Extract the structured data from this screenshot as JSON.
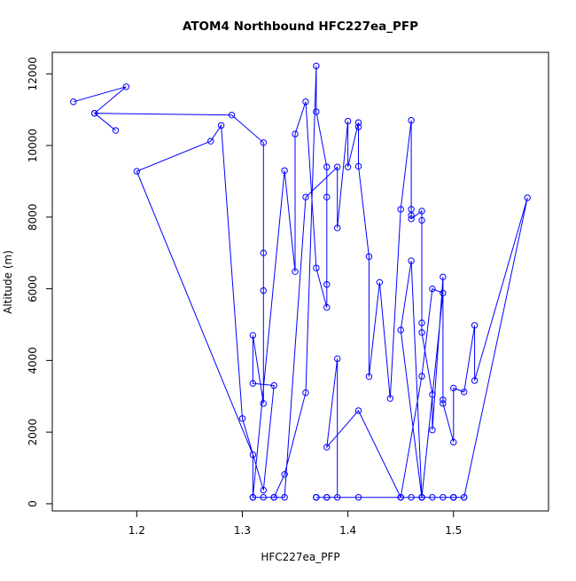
{
  "chart_data": {
    "type": "scatter",
    "title": "ATOM4 Northbound HFC227ea_PFP",
    "xlabel": "HFC227ea_PFP",
    "ylabel": "Altitude (m)",
    "xlim": [
      1.12,
      1.59
    ],
    "ylim": [
      -200,
      12600
    ],
    "xticks": [
      1.2,
      1.3,
      1.4,
      1.5
    ],
    "xtick_labels": [
      "1.2",
      "1.3",
      "1.4",
      "1.5"
    ],
    "yticks": [
      0,
      2000,
      4000,
      6000,
      8000,
      10000,
      12000
    ],
    "ytick_labels": [
      "0",
      "2000",
      "4000",
      "6000",
      "8000",
      "10000",
      "12000"
    ],
    "grid": false,
    "marker": "open-circle",
    "connect_points": true,
    "series_color": "#0000ff",
    "series": [
      {
        "x": [
          1.14,
          1.19,
          1.16,
          1.18,
          1.16,
          1.29,
          1.32,
          1.32,
          1.32,
          1.32,
          1.31,
          1.31,
          1.33,
          1.32,
          1.3,
          1.28,
          1.27,
          1.2,
          1.31,
          1.31,
          1.33,
          1.34,
          1.36,
          1.37,
          1.37,
          1.38,
          1.38,
          1.38,
          1.38,
          1.37,
          1.36,
          1.35,
          1.35,
          1.34,
          1.31,
          1.32,
          1.33,
          1.34,
          1.36,
          1.39,
          1.39,
          1.4,
          1.4,
          1.41,
          1.41,
          1.41,
          1.42,
          1.42,
          1.43,
          1.44,
          1.45,
          1.46,
          1.46,
          1.46,
          1.46,
          1.47,
          1.47,
          1.47,
          1.47,
          1.48,
          1.48,
          1.49,
          1.49,
          1.49,
          1.5,
          1.5,
          1.51,
          1.52,
          1.52,
          1.57,
          1.51,
          1.5,
          1.49,
          1.48,
          1.47,
          1.46,
          1.45,
          1.47,
          1.48,
          1.49,
          1.47,
          1.46,
          1.45,
          1.47,
          1.5,
          1.51,
          1.45,
          1.41,
          1.38,
          1.39,
          1.39,
          1.38,
          1.37,
          1.37,
          1.37,
          1.38,
          1.41,
          1.45,
          1.47,
          1.5
        ],
        "y": [
          11220,
          11640,
          10900,
          10420,
          10900,
          10850,
          10080,
          7000,
          5950,
          2800,
          4700,
          3360,
          3300,
          380,
          2380,
          10560,
          10120,
          9280,
          1370,
          180,
          180,
          820,
          3100,
          12220,
          10940,
          9400,
          8560,
          6120,
          5480,
          6580,
          11220,
          10320,
          6480,
          9300,
          180,
          180,
          180,
          180,
          8560,
          9400,
          7700,
          10680,
          9400,
          10640,
          10520,
          9420,
          6900,
          3550,
          6180,
          2940,
          8220,
          10700,
          8220,
          8050,
          7950,
          8170,
          7910,
          5050,
          4780,
          3050,
          2060,
          6330,
          2900,
          2800,
          1720,
          3230,
          3120,
          4980,
          3440,
          8540,
          180,
          180,
          180,
          180,
          180,
          180,
          180,
          3560,
          6000,
          5880,
          180,
          6780,
          4850,
          180,
          180,
          180,
          180,
          2600,
          1580,
          4050,
          180,
          180,
          180,
          180,
          180,
          180,
          180,
          180,
          180,
          180
        ]
      }
    ]
  }
}
